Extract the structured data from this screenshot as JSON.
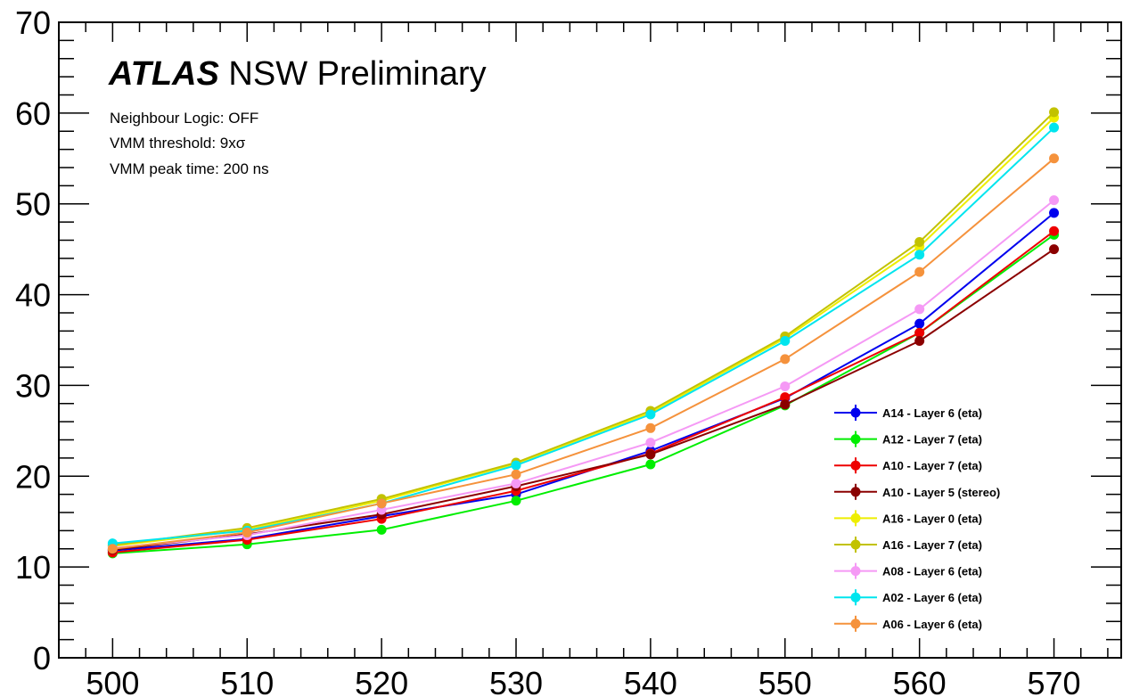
{
  "header": {
    "atlas": "ATLAS",
    "subtitle": "NSW Preliminary"
  },
  "info": {
    "line1": "Neighbour Logic: OFF",
    "line2": "VMM threshold: 9xσ",
    "line3": "VMM peak time: 200 ns"
  },
  "chart_data": {
    "type": "line",
    "title": "",
    "xlabel": "",
    "ylabel": "",
    "xlim": [
      496,
      575
    ],
    "ylim": [
      0,
      70
    ],
    "xticks": [
      500,
      510,
      520,
      530,
      540,
      550,
      560,
      570
    ],
    "yticks": [
      0,
      10,
      20,
      30,
      40,
      50,
      60,
      70
    ],
    "grid": false,
    "legend_position": "bottom-right",
    "x": [
      500,
      510,
      520,
      530,
      540,
      550,
      560,
      570
    ],
    "series": [
      {
        "name": "A14 - Layer 6 (eta)",
        "color": "#0000ee",
        "values": [
          11.8,
          13.1,
          15.6,
          18.0,
          22.8,
          28.6,
          36.8,
          49.0
        ]
      },
      {
        "name": "A12 - Layer 7 (eta)",
        "color": "#00ee00",
        "values": [
          11.5,
          12.5,
          14.1,
          17.3,
          21.3,
          27.8,
          35.8,
          46.6
        ]
      },
      {
        "name": "A10 - Layer 7 (eta)",
        "color": "#ee0000",
        "values": [
          11.6,
          13.0,
          15.3,
          18.4,
          22.5,
          28.7,
          35.8,
          47.0
        ]
      },
      {
        "name": "A10 - Layer 5 (stereo)",
        "color": "#8b0000",
        "values": [
          11.9,
          13.6,
          15.8,
          18.9,
          22.4,
          27.9,
          34.9,
          45.0
        ]
      },
      {
        "name": "A16 - Layer 0 (eta)",
        "color": "#eeee00",
        "values": [
          12.3,
          14.1,
          17.3,
          21.4,
          27.0,
          35.2,
          45.3,
          59.5
        ]
      },
      {
        "name": "A16 - Layer 7 (eta)",
        "color": "#c2c200",
        "values": [
          12.4,
          14.3,
          17.5,
          21.5,
          27.2,
          35.4,
          45.8,
          60.1
        ]
      },
      {
        "name": "A08 - Layer 6 (eta)",
        "color": "#f599f5",
        "values": [
          12.1,
          13.5,
          16.3,
          19.2,
          23.7,
          29.9,
          38.4,
          50.4
        ]
      },
      {
        "name": "A02 - Layer 6 (eta)",
        "color": "#00e5ee",
        "values": [
          12.6,
          14.0,
          17.0,
          21.2,
          26.8,
          34.9,
          44.4,
          58.4
        ]
      },
      {
        "name": "A06 - Layer 6 (eta)",
        "color": "#f5923c",
        "values": [
          12.0,
          13.8,
          17.0,
          20.2,
          25.3,
          32.9,
          42.5,
          55.0
        ]
      }
    ]
  }
}
